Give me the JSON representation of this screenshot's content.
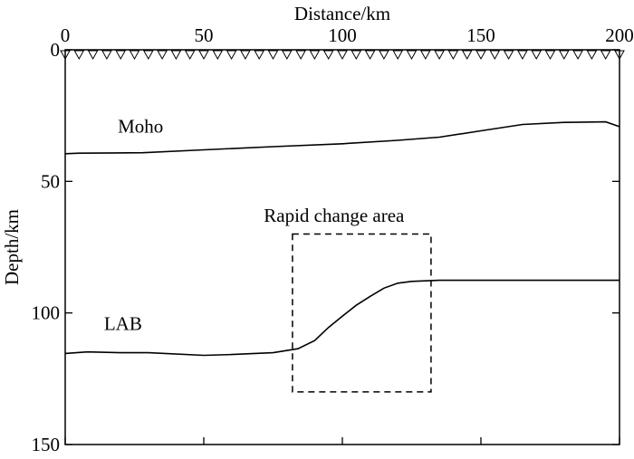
{
  "chart_data": {
    "type": "line",
    "xlabel": "Distance/km",
    "ylabel": "Depth/km",
    "xlim": [
      0,
      200
    ],
    "ylim": [
      0,
      150
    ],
    "y_inverted": true,
    "x_axis_position": "top",
    "x_ticks": [
      "0",
      "50",
      "100",
      "150",
      "200"
    ],
    "y_ticks": [
      "0",
      "50",
      "100",
      "150"
    ],
    "grid": false,
    "station_markers": {
      "shape": "inverted-triangle",
      "count": 41,
      "from": 0,
      "to": 200
    },
    "series": [
      {
        "name": "Moho",
        "x": [
          0,
          5,
          28,
          50,
          75,
          100,
          120,
          135,
          150,
          165,
          180,
          195,
          200
        ],
        "y": [
          39.5,
          39.3,
          39.1,
          38.0,
          36.8,
          35.7,
          34.4,
          33.2,
          30.8,
          28.4,
          27.6,
          27.4,
          29.2
        ]
      },
      {
        "name": "LAB",
        "x": [
          0,
          8,
          20,
          30,
          50,
          60,
          75,
          84,
          90,
          95,
          100,
          105,
          110,
          115,
          120,
          125,
          135,
          150,
          175,
          200
        ],
        "y": [
          115.4,
          114.8,
          115.1,
          115.1,
          116.1,
          115.8,
          115.1,
          113.6,
          110.5,
          105.5,
          101.2,
          97.1,
          93.7,
          90.6,
          88.7,
          88.0,
          87.6,
          87.6,
          87.6,
          87.6
        ]
      }
    ],
    "annotations": [
      {
        "text": "Moho",
        "x": 19,
        "y": 29
      },
      {
        "text": "LAB",
        "x": 14,
        "y": 104
      },
      {
        "text": "Rapid change area",
        "x": 97,
        "y": 63
      }
    ],
    "highlight_box": {
      "x0": 82,
      "x1": 132,
      "y0": 70,
      "y1": 130,
      "style": "dashed"
    }
  }
}
